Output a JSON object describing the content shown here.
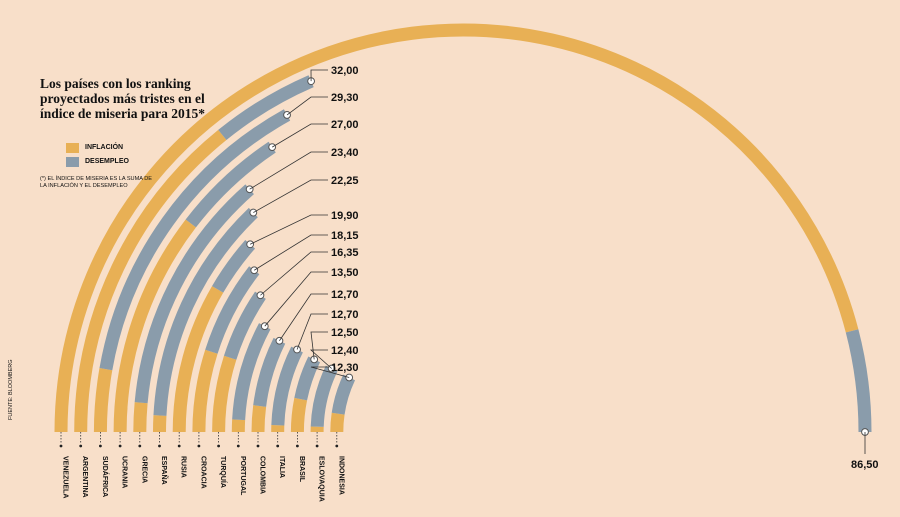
{
  "title": "Los países con los ranking proyectados más tristes en el índice de miseria para 2015*",
  "legend": [
    {
      "label": "INFLACIÓN",
      "color": "#e8b055"
    },
    {
      "label": "DESEMPLEO",
      "color": "#8a9cab"
    }
  ],
  "note": "(*) El índice de miseria es la suma de la inflación y el desempleo",
  "source": "FUENTE: BLOOMBERG",
  "colors": {
    "inflation": "#e8b055",
    "unemployment": "#8a9cab",
    "background": "#f8dfc9"
  },
  "chart_data": {
    "type": "radial-bar",
    "max_value": 86.5,
    "categories": [
      "VENEZUELA",
      "ARGENTINA",
      "SUDÁFRICA",
      "UCRANIA",
      "GRECIA",
      "ESPAÑA",
      "RUSIA",
      "CROACIA",
      "TURQUÍA",
      "PORTUGAL",
      "COLOMBIA",
      "ITALIA",
      "BRASIL",
      "ESLOVAQUIA",
      "INDONESIA"
    ],
    "totals": [
      86.5,
      32.0,
      29.3,
      27.0,
      23.4,
      22.25,
      19.9,
      18.15,
      16.35,
      13.5,
      12.7,
      12.7,
      12.5,
      12.4,
      12.3
    ],
    "total_labels": [
      "86,50",
      "32,00",
      "29,30",
      "27,00",
      "23,40",
      "22,25",
      "19,90",
      "18,15",
      "16,35",
      "13,50",
      "12,70",
      "12,70",
      "12,50",
      "12,40",
      "12,30"
    ],
    "series": [
      {
        "name": "INFLACIÓN",
        "values": [
          79.5,
          24.5,
          4.8,
          18.0,
          2.5,
          1.5,
          14.5,
          8.5,
          8.5,
          1.5,
          3.5,
          1.0,
          5.5,
          1.0,
          4.0
        ]
      },
      {
        "name": "DESEMPLEO",
        "values": [
          7.0,
          7.5,
          24.5,
          9.0,
          20.9,
          20.75,
          5.4,
          9.65,
          7.85,
          12.0,
          9.2,
          11.7,
          7.0,
          11.4,
          8.3
        ]
      }
    ]
  }
}
